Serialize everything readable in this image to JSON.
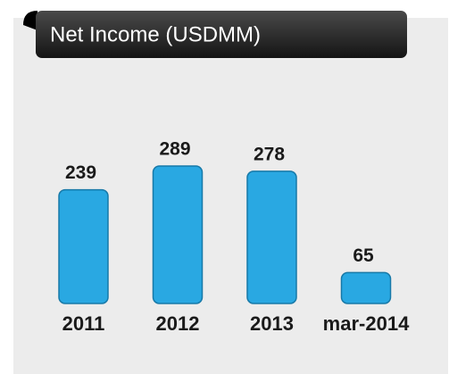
{
  "chart_data": {
    "type": "bar",
    "title": "Net Income (USDMM)",
    "categories": [
      "2011",
      "2012",
      "2013",
      "mar-2014"
    ],
    "values": [
      239,
      289,
      278,
      65
    ],
    "color": "#29a8e2"
  }
}
